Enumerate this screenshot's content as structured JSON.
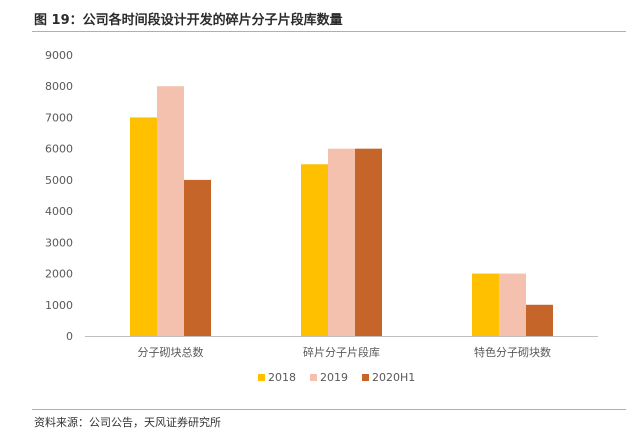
{
  "title": "图 19：公司各时间段设计开发的碎片分子片段库数量",
  "source": "资料来源：公司公告，天风证券研究所",
  "colors": {
    "rule": "#F0A43A",
    "axis": "#BFBFBF",
    "text": "#595959"
  },
  "chart_data": {
    "type": "bar",
    "title": "",
    "xlabel": "",
    "ylabel": "",
    "categories": [
      "分子砌块总数",
      "碎片分子片段库",
      "特色分子砌块数"
    ],
    "series": [
      {
        "name": "2018",
        "color": "#FFC000",
        "values": [
          7000,
          5500,
          2000
        ]
      },
      {
        "name": "2019",
        "color": "#F4C1AE",
        "values": [
          8000,
          6000,
          2000
        ]
      },
      {
        "name": "2020H1",
        "color": "#C5652A",
        "values": [
          5000,
          6000,
          1000
        ]
      }
    ],
    "ylim": [
      0,
      9000
    ],
    "yticks": [
      0,
      1000,
      2000,
      3000,
      4000,
      5000,
      6000,
      7000,
      8000,
      9000
    ],
    "grid": false,
    "legend_position": "bottom"
  }
}
